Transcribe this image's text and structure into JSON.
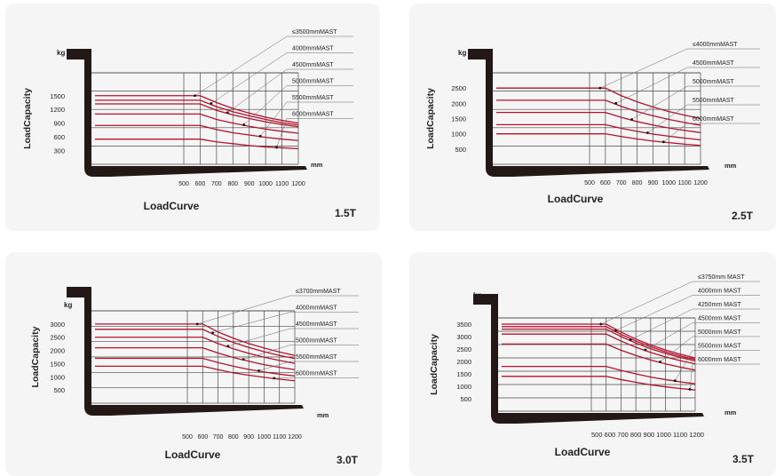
{
  "chart_data": [
    {
      "type": "line",
      "title": "LoadCurve",
      "capacity_label": "1.5T",
      "ylabel": "LoadCapacity",
      "yunit": "kg",
      "xunit": "mm",
      "x_ticks": [
        "500",
        "600",
        "700",
        "800",
        "900",
        "1000",
        "1100",
        "1200"
      ],
      "y_ticks": [
        "1500",
        "1200",
        "900",
        "600",
        "300"
      ],
      "ylim": [
        0,
        2000
      ],
      "x_break_mm": 500,
      "series": [
        {
          "name": "≤3500mmMAST",
          "values": [
            1500,
            1500,
            1350,
            1220,
            1120,
            1030,
            960,
            900
          ]
        },
        {
          "name": "4000mmMAST",
          "values": [
            1400,
            1400,
            1260,
            1150,
            1060,
            980,
            910,
            860
          ]
        },
        {
          "name": "4500mmMAST",
          "values": [
            1320,
            1320,
            1180,
            1080,
            1000,
            930,
            870,
            820
          ]
        },
        {
          "name": "5000mmMAST",
          "values": [
            1100,
            1100,
            980,
            900,
            830,
            770,
            720,
            680
          ]
        },
        {
          "name": "5500mmMAST",
          "values": [
            850,
            850,
            760,
            690,
            640,
            590,
            550,
            520
          ]
        },
        {
          "name": "6000mmMAST",
          "values": [
            550,
            550,
            490,
            450,
            410,
            380,
            360,
            340
          ]
        }
      ]
    },
    {
      "type": "line",
      "title": "LoadCurve",
      "capacity_label": "2.5T",
      "ylabel": "LoadCapacity",
      "yunit": "kg",
      "xunit": "mm",
      "x_ticks": [
        "500",
        "600",
        "700",
        "800",
        "900",
        "1000",
        "1100",
        "1200"
      ],
      "y_ticks": [
        "2500",
        "2000",
        "1500",
        "1000",
        "500"
      ],
      "ylim": [
        0,
        3000
      ],
      "x_break_mm": 500,
      "series": [
        {
          "name": "≤4000mmMAST",
          "values": [
            2500,
            2500,
            2250,
            2050,
            1880,
            1730,
            1610,
            1500
          ]
        },
        {
          "name": "4500mmMAST",
          "values": [
            2100,
            2100,
            1900,
            1730,
            1590,
            1470,
            1370,
            1280
          ]
        },
        {
          "name": "5000mmMAST",
          "values": [
            1700,
            1700,
            1540,
            1400,
            1290,
            1190,
            1110,
            1040
          ]
        },
        {
          "name": "5500mmMAST",
          "values": [
            1300,
            1300,
            1180,
            1080,
            990,
            920,
            860,
            800
          ]
        },
        {
          "name": "6000mmMAST",
          "values": [
            1000,
            1000,
            910,
            830,
            760,
            710,
            660,
            620
          ]
        }
      ]
    },
    {
      "type": "line",
      "title": "LoadCurve",
      "capacity_label": "3.0T",
      "ylabel": "LoadCapacity",
      "yunit": "kg",
      "xunit": "mm",
      "x_ticks": [
        "500",
        "600",
        "700",
        "800",
        "900",
        "1000",
        "1100",
        "1200"
      ],
      "y_ticks": [
        "3000",
        "2500",
        "2000",
        "1500",
        "1000",
        "500"
      ],
      "ylim": [
        0,
        3500
      ],
      "x_break_mm": 500,
      "series": [
        {
          "name": "≤3700mmMAST",
          "values": [
            3000,
            3000,
            2700,
            2460,
            2260,
            2090,
            1940,
            1810
          ]
        },
        {
          "name": "4000mmMAST",
          "values": [
            2800,
            2800,
            2530,
            2300,
            2110,
            1950,
            1810,
            1690
          ]
        },
        {
          "name": "4500mmMAST",
          "values": [
            2500,
            2500,
            2260,
            2060,
            1890,
            1740,
            1620,
            1510
          ]
        },
        {
          "name": "5000mmMAST",
          "values": [
            2100,
            2100,
            1900,
            1730,
            1590,
            1460,
            1360,
            1270
          ]
        },
        {
          "name": "5500mmMAST",
          "values": [
            1700,
            1700,
            1540,
            1400,
            1280,
            1180,
            1100,
            1030
          ]
        },
        {
          "name": "6000mmMAST",
          "values": [
            1400,
            1400,
            1270,
            1150,
            1060,
            980,
            910,
            850
          ]
        }
      ]
    },
    {
      "type": "line",
      "title": "LoadCurve",
      "capacity_label": "3.5T",
      "ylabel": "LoadCapacity",
      "yunit": "kg",
      "xunit": "mm",
      "x_ticks": [
        "500",
        "600",
        "700",
        "800",
        "900",
        "1000",
        "1100",
        "1200"
      ],
      "x_tick_text": "500 600 700 800 900 1000 1100 1200",
      "y_ticks": [
        "3500",
        "3000",
        "2500",
        "2000",
        "1500",
        "1000",
        "500"
      ],
      "ylim": [
        0,
        3750
      ],
      "x_break_mm": 500,
      "series": [
        {
          "name": "≤3750mm MAST",
          "values": [
            3500,
            3500,
            3180,
            2900,
            2660,
            2460,
            2290,
            2140
          ]
        },
        {
          "name": "4000mm MAST",
          "values": [
            3400,
            3400,
            3090,
            2820,
            2590,
            2390,
            2220,
            2080
          ]
        },
        {
          "name": "4250mm MAST",
          "values": [
            3300,
            3300,
            3000,
            2740,
            2510,
            2320,
            2160,
            2020
          ]
        },
        {
          "name": "4500mm MAST",
          "values": [
            3100,
            3100,
            2820,
            2570,
            2360,
            2180,
            2030,
            1900
          ]
        },
        {
          "name": "5000mm MAST",
          "values": [
            2700,
            2700,
            2450,
            2240,
            2060,
            1900,
            1770,
            1650
          ]
        },
        {
          "name": "5500mm MAST",
          "values": [
            1800,
            1800,
            1640,
            1500,
            1370,
            1270,
            1180,
            1100
          ]
        },
        {
          "name": "6000mm MAST",
          "values": [
            1400,
            1400,
            1270,
            1160,
            1060,
            980,
            910,
            850
          ]
        }
      ]
    }
  ],
  "colors": {
    "curve": "#b3122a",
    "grid": "#4a4a4a",
    "fork": "#231815",
    "panel_bg": "#f5f5f5",
    "leader": "#666666"
  }
}
